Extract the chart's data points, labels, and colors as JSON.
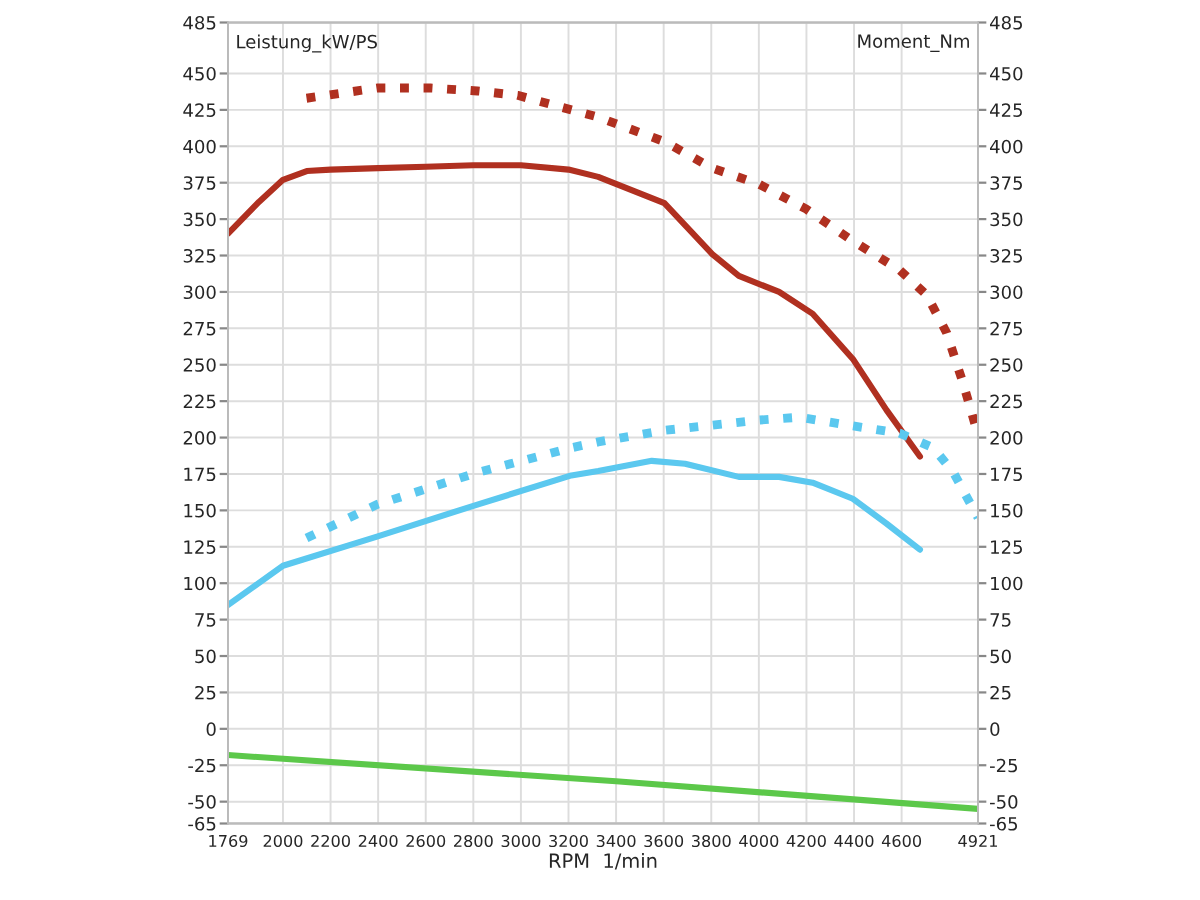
{
  "chart_data": {
    "type": "line",
    "ylabel": "Leistung_kW/PS",
    "y2label": "Moment_Nm",
    "xlabel": "RPM  1/min",
    "xlim": [
      1769,
      4921
    ],
    "xticks": [
      1769,
      2000,
      2200,
      2400,
      2600,
      2800,
      3000,
      3200,
      3400,
      3600,
      3800,
      4000,
      4200,
      4400,
      4600,
      4921
    ],
    "ylim": [
      -65,
      485
    ],
    "yticks": [
      -65,
      -50,
      -25,
      0,
      25,
      50,
      75,
      100,
      125,
      150,
      175,
      200,
      225,
      250,
      275,
      300,
      325,
      350,
      375,
      400,
      425,
      450,
      485
    ],
    "y2lim": [
      -65,
      485
    ],
    "y2ticks": [
      -65,
      -50,
      -25,
      0,
      25,
      50,
      75,
      100,
      125,
      150,
      175,
      200,
      225,
      250,
      275,
      300,
      325,
      350,
      375,
      400,
      425,
      450,
      485
    ],
    "grid": true,
    "series": [
      {
        "color": "#b03020",
        "line_style": "solid",
        "x": [
          1769,
          1900,
          2000,
          2100,
          2200,
          2400,
          2600,
          2800,
          3000,
          3200,
          3325,
          3603,
          3804,
          3916,
          4085,
          4226,
          4395,
          4536,
          4677
        ],
        "values": [
          340,
          362,
          377,
          383,
          384,
          385,
          386,
          387,
          387,
          384,
          379,
          361,
          326,
          311,
          300,
          285,
          254,
          219,
          187
        ]
      },
      {
        "color": "#b03020",
        "line_style": "dotted",
        "x": [
          2099,
          2395,
          2620,
          2817,
          2986,
          3212,
          3325,
          3606,
          3804,
          4001,
          4198,
          4395,
          4592,
          4705,
          4789,
          4859,
          4921
        ],
        "values": [
          433,
          440,
          440,
          438,
          435,
          425,
          420,
          403,
          385,
          374,
          357,
          335,
          315,
          298,
          272,
          237,
          202
        ]
      },
      {
        "color": "#5bc8ef",
        "line_style": "solid",
        "x": [
          1769,
          2000,
          2395,
          2817,
          3212,
          3325,
          3550,
          3690,
          3916,
          4085,
          4226,
          4395,
          4536,
          4677
        ],
        "values": [
          85,
          112,
          132,
          154,
          174,
          177,
          184,
          182,
          173,
          173,
          169,
          158,
          141,
          123
        ]
      },
      {
        "color": "#5bc8ef",
        "line_style": "dotted",
        "x": [
          2099,
          2395,
          2817,
          3212,
          3325,
          3606,
          4001,
          4170,
          4395,
          4592,
          4733,
          4818,
          4921
        ],
        "values": [
          131,
          154,
          176,
          193,
          197,
          205,
          212,
          214,
          208,
          203,
          193,
          176,
          145
        ]
      },
      {
        "color": "#5cc84a",
        "line_style": "solid",
        "x": [
          1769,
          3400,
          4921
        ],
        "values": [
          -18,
          -36,
          -55
        ]
      }
    ]
  }
}
